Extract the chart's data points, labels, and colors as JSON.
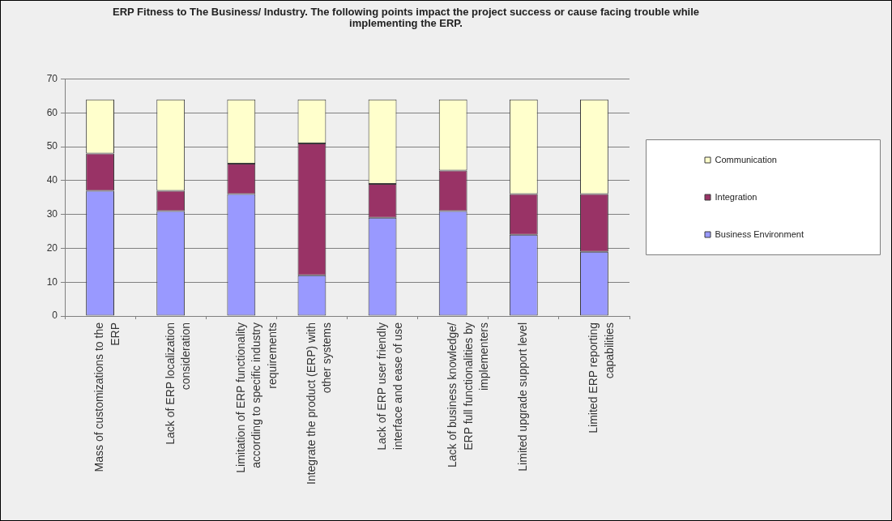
{
  "chart_data": {
    "type": "bar",
    "title": "ERP Fitness to The Business/ Industry. The following points impact the project success or cause facing trouble while implementing the ERP.",
    "categories": [
      "Mass of customizations to the ERP",
      "Lack of ERP localization consideration",
      "Limitation of ERP functionality according to specific industry requirements",
      "Integrate the product (ERP) with other systems",
      "Lack of ERP user friendly interface and ease of use",
      "Lack of business knowledge/ ERP full functionalities by implementers",
      "Limited upgrade support level",
      "Limited ERP reporting capabilities"
    ],
    "series": [
      {
        "name": "Business Environment",
        "color": "#9999ff",
        "values": [
          37,
          31,
          36,
          12,
          29,
          31,
          24,
          19
        ]
      },
      {
        "name": "Integration",
        "color": "#993366",
        "values": [
          11,
          6,
          9,
          39,
          10,
          12,
          12,
          17
        ]
      },
      {
        "name": "Communication",
        "color": "#ffffcc",
        "values": [
          16,
          27,
          19,
          13,
          25,
          21,
          28,
          28
        ]
      }
    ],
    "stacked": true,
    "ylim": [
      0,
      70
    ],
    "yticks": [
      0,
      10,
      20,
      30,
      40,
      50,
      60,
      70
    ],
    "grid": "y",
    "legend": "right"
  }
}
